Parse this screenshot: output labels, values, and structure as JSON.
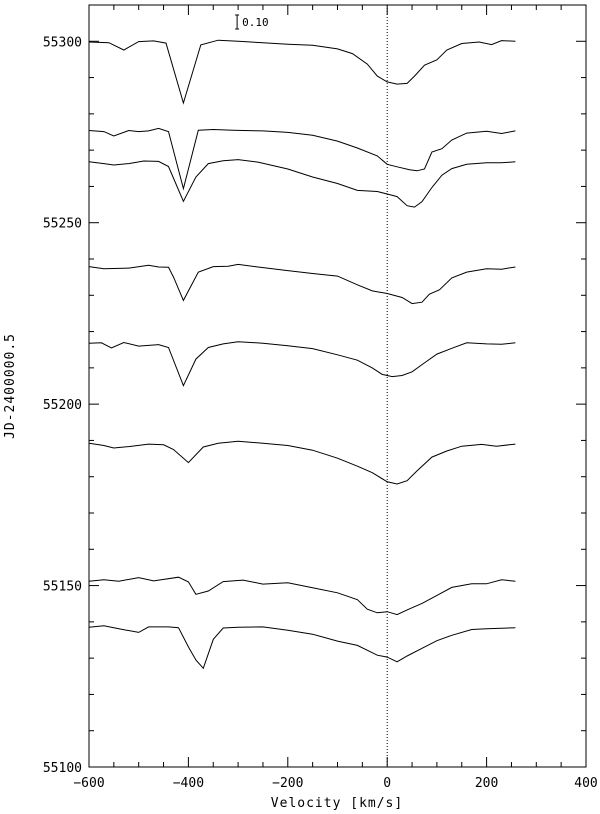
{
  "chart_data": {
    "type": "line",
    "xlabel": "Velocity [km/s]",
    "ylabel": "JD-2400000.5",
    "xlim": [
      -600,
      400
    ],
    "ylim": [
      55100,
      55310
    ],
    "xticks": [
      -600,
      -400,
      -200,
      0,
      200,
      400
    ],
    "xtick_labels": [
      "−600",
      "−400",
      "−200",
      "0",
      "200",
      "400"
    ],
    "yticks": [
      55100,
      55150,
      55200,
      55250,
      55300
    ],
    "ytick_labels": [
      "55100",
      "55150",
      "55200",
      "55250",
      "55300"
    ],
    "reference_line_x": 0,
    "scale_bar": {
      "label": "0.10",
      "x": -300
    },
    "spectra": [
      {
        "points": [
          [
            -600,
            55299.8
          ],
          [
            -560,
            55299.6
          ],
          [
            -530,
            55297.6
          ],
          [
            -500,
            55299.9
          ],
          [
            -470,
            55300.1
          ],
          [
            -445,
            55299.5
          ],
          [
            -410,
            55283.0
          ],
          [
            -375,
            55299.0
          ],
          [
            -340,
            55300.3
          ],
          [
            -300,
            55300.0
          ],
          [
            -250,
            55299.6
          ],
          [
            -200,
            55299.2
          ],
          [
            -150,
            55298.9
          ],
          [
            -100,
            55297.9
          ],
          [
            -70,
            55296.6
          ],
          [
            -40,
            55293.7
          ],
          [
            -20,
            55290.4
          ],
          [
            0,
            55288.8
          ],
          [
            20,
            55288.2
          ],
          [
            40,
            55288.4
          ],
          [
            55,
            55290.4
          ],
          [
            75,
            55293.4
          ],
          [
            100,
            55294.9
          ],
          [
            120,
            55297.6
          ],
          [
            150,
            55299.4
          ],
          [
            185,
            55299.8
          ],
          [
            210,
            55299.1
          ],
          [
            230,
            55300.2
          ],
          [
            258,
            55300.0
          ]
        ]
      },
      {
        "points": [
          [
            -600,
            55275.4
          ],
          [
            -570,
            55275.1
          ],
          [
            -550,
            55273.9
          ],
          [
            -520,
            55275.4
          ],
          [
            -500,
            55275.1
          ],
          [
            -480,
            55275.3
          ],
          [
            -460,
            55276.0
          ],
          [
            -440,
            55275.1
          ],
          [
            -410,
            55259.4
          ],
          [
            -380,
            55275.5
          ],
          [
            -350,
            55275.7
          ],
          [
            -310,
            55275.5
          ],
          [
            -250,
            55275.3
          ],
          [
            -200,
            55274.9
          ],
          [
            -150,
            55274.1
          ],
          [
            -100,
            55272.5
          ],
          [
            -60,
            55270.6
          ],
          [
            -20,
            55268.4
          ],
          [
            0,
            55266.1
          ],
          [
            20,
            55265.4
          ],
          [
            45,
            55264.6
          ],
          [
            60,
            55264.3
          ],
          [
            75,
            55264.8
          ],
          [
            90,
            55269.5
          ],
          [
            110,
            55270.4
          ],
          [
            130,
            55272.8
          ],
          [
            160,
            55274.7
          ],
          [
            200,
            55275.2
          ],
          [
            230,
            55274.6
          ],
          [
            258,
            55275.3
          ]
        ]
      },
      {
        "points": [
          [
            -600,
            55266.8
          ],
          [
            -570,
            55266.3
          ],
          [
            -550,
            55265.9
          ],
          [
            -520,
            55266.3
          ],
          [
            -490,
            55267.0
          ],
          [
            -460,
            55266.9
          ],
          [
            -440,
            55265.5
          ],
          [
            -410,
            55255.9
          ],
          [
            -385,
            55262.6
          ],
          [
            -360,
            55266.3
          ],
          [
            -330,
            55267.1
          ],
          [
            -300,
            55267.4
          ],
          [
            -260,
            55266.7
          ],
          [
            -200,
            55264.8
          ],
          [
            -150,
            55262.6
          ],
          [
            -100,
            55260.8
          ],
          [
            -60,
            55258.9
          ],
          [
            -20,
            55258.6
          ],
          [
            0,
            55257.9
          ],
          [
            20,
            55257.2
          ],
          [
            40,
            55254.7
          ],
          [
            55,
            55254.3
          ],
          [
            70,
            55255.8
          ],
          [
            90,
            55259.7
          ],
          [
            110,
            55263.1
          ],
          [
            130,
            55264.9
          ],
          [
            160,
            55266.1
          ],
          [
            200,
            55266.5
          ],
          [
            230,
            55266.5
          ],
          [
            258,
            55266.8
          ]
        ]
      },
      {
        "points": [
          [
            -600,
            55237.9
          ],
          [
            -570,
            55237.3
          ],
          [
            -540,
            55237.4
          ],
          [
            -520,
            55237.5
          ],
          [
            -480,
            55238.3
          ],
          [
            -460,
            55237.8
          ],
          [
            -440,
            55237.7
          ],
          [
            -430,
            55235.0
          ],
          [
            -410,
            55228.6
          ],
          [
            -380,
            55236.4
          ],
          [
            -350,
            55237.9
          ],
          [
            -320,
            55238.0
          ],
          [
            -300,
            55238.5
          ],
          [
            -260,
            55237.8
          ],
          [
            -200,
            55236.8
          ],
          [
            -150,
            55236.0
          ],
          [
            -100,
            55235.3
          ],
          [
            -60,
            55232.9
          ],
          [
            -30,
            55231.2
          ],
          [
            0,
            55230.5
          ],
          [
            30,
            55229.4
          ],
          [
            50,
            55227.7
          ],
          [
            70,
            55228.1
          ],
          [
            85,
            55230.3
          ],
          [
            105,
            55231.5
          ],
          [
            130,
            55234.8
          ],
          [
            160,
            55236.4
          ],
          [
            200,
            55237.3
          ],
          [
            230,
            55237.2
          ],
          [
            258,
            55237.8
          ]
        ]
      },
      {
        "points": [
          [
            -600,
            55216.8
          ],
          [
            -575,
            55216.9
          ],
          [
            -555,
            55215.5
          ],
          [
            -530,
            55217.0
          ],
          [
            -500,
            55216.0
          ],
          [
            -460,
            55216.4
          ],
          [
            -440,
            55215.6
          ],
          [
            -410,
            55205.1
          ],
          [
            -385,
            55212.4
          ],
          [
            -360,
            55215.6
          ],
          [
            -330,
            55216.6
          ],
          [
            -300,
            55217.2
          ],
          [
            -250,
            55216.8
          ],
          [
            -200,
            55216.1
          ],
          [
            -150,
            55215.3
          ],
          [
            -100,
            55213.6
          ],
          [
            -60,
            55212.1
          ],
          [
            -30,
            55210.0
          ],
          [
            -10,
            55208.2
          ],
          [
            10,
            55207.6
          ],
          [
            30,
            55207.9
          ],
          [
            50,
            55208.9
          ],
          [
            70,
            55210.9
          ],
          [
            100,
            55213.8
          ],
          [
            130,
            55215.4
          ],
          [
            160,
            55216.9
          ],
          [
            200,
            55216.6
          ],
          [
            230,
            55216.5
          ],
          [
            258,
            55216.9
          ]
        ]
      },
      {
        "points": [
          [
            -600,
            55189.2
          ],
          [
            -570,
            55188.6
          ],
          [
            -550,
            55187.9
          ],
          [
            -520,
            55188.3
          ],
          [
            -480,
            55189.0
          ],
          [
            -450,
            55188.8
          ],
          [
            -430,
            55187.5
          ],
          [
            -400,
            55183.9
          ],
          [
            -370,
            55188.2
          ],
          [
            -340,
            55189.2
          ],
          [
            -300,
            55189.8
          ],
          [
            -250,
            55189.2
          ],
          [
            -200,
            55188.6
          ],
          [
            -150,
            55187.3
          ],
          [
            -100,
            55185.1
          ],
          [
            -60,
            55182.9
          ],
          [
            -30,
            55181.1
          ],
          [
            0,
            55178.6
          ],
          [
            20,
            55178.0
          ],
          [
            40,
            55178.9
          ],
          [
            60,
            55181.6
          ],
          [
            90,
            55185.4
          ],
          [
            120,
            55187.1
          ],
          [
            150,
            55188.4
          ],
          [
            190,
            55188.9
          ],
          [
            220,
            55188.4
          ],
          [
            258,
            55189.0
          ]
        ]
      },
      {
        "points": [
          [
            -600,
            55151.2
          ],
          [
            -570,
            55151.6
          ],
          [
            -540,
            55151.2
          ],
          [
            -500,
            55152.2
          ],
          [
            -470,
            55151.3
          ],
          [
            -420,
            55152.3
          ],
          [
            -400,
            55151.0
          ],
          [
            -385,
            55147.6
          ],
          [
            -360,
            55148.5
          ],
          [
            -330,
            55151.1
          ],
          [
            -290,
            55151.5
          ],
          [
            -250,
            55150.4
          ],
          [
            -200,
            55150.8
          ],
          [
            -150,
            55149.4
          ],
          [
            -100,
            55148.0
          ],
          [
            -60,
            55146.1
          ],
          [
            -40,
            55143.5
          ],
          [
            -20,
            55142.5
          ],
          [
            0,
            55142.8
          ],
          [
            20,
            55142.0
          ],
          [
            45,
            55143.6
          ],
          [
            70,
            55145.1
          ],
          [
            100,
            55147.3
          ],
          [
            130,
            55149.5
          ],
          [
            170,
            55150.5
          ],
          [
            200,
            55150.5
          ],
          [
            230,
            55151.6
          ],
          [
            258,
            55151.2
          ]
        ]
      },
      {
        "points": [
          [
            -600,
            55138.5
          ],
          [
            -570,
            55138.9
          ],
          [
            -540,
            55138.1
          ],
          [
            -500,
            55137.1
          ],
          [
            -480,
            55138.6
          ],
          [
            -440,
            55138.6
          ],
          [
            -420,
            55138.4
          ],
          [
            -400,
            55133.1
          ],
          [
            -385,
            55129.5
          ],
          [
            -370,
            55127.2
          ],
          [
            -350,
            55135.2
          ],
          [
            -330,
            55138.3
          ],
          [
            -300,
            55138.5
          ],
          [
            -250,
            55138.6
          ],
          [
            -200,
            55137.7
          ],
          [
            -150,
            55136.6
          ],
          [
            -100,
            55134.7
          ],
          [
            -60,
            55133.5
          ],
          [
            -20,
            55130.8
          ],
          [
            0,
            55130.3
          ],
          [
            20,
            55129.0
          ],
          [
            40,
            55130.6
          ],
          [
            70,
            55132.7
          ],
          [
            100,
            55134.8
          ],
          [
            130,
            55136.3
          ],
          [
            170,
            55137.9
          ],
          [
            200,
            55138.1
          ],
          [
            258,
            55138.4
          ]
        ]
      }
    ]
  }
}
